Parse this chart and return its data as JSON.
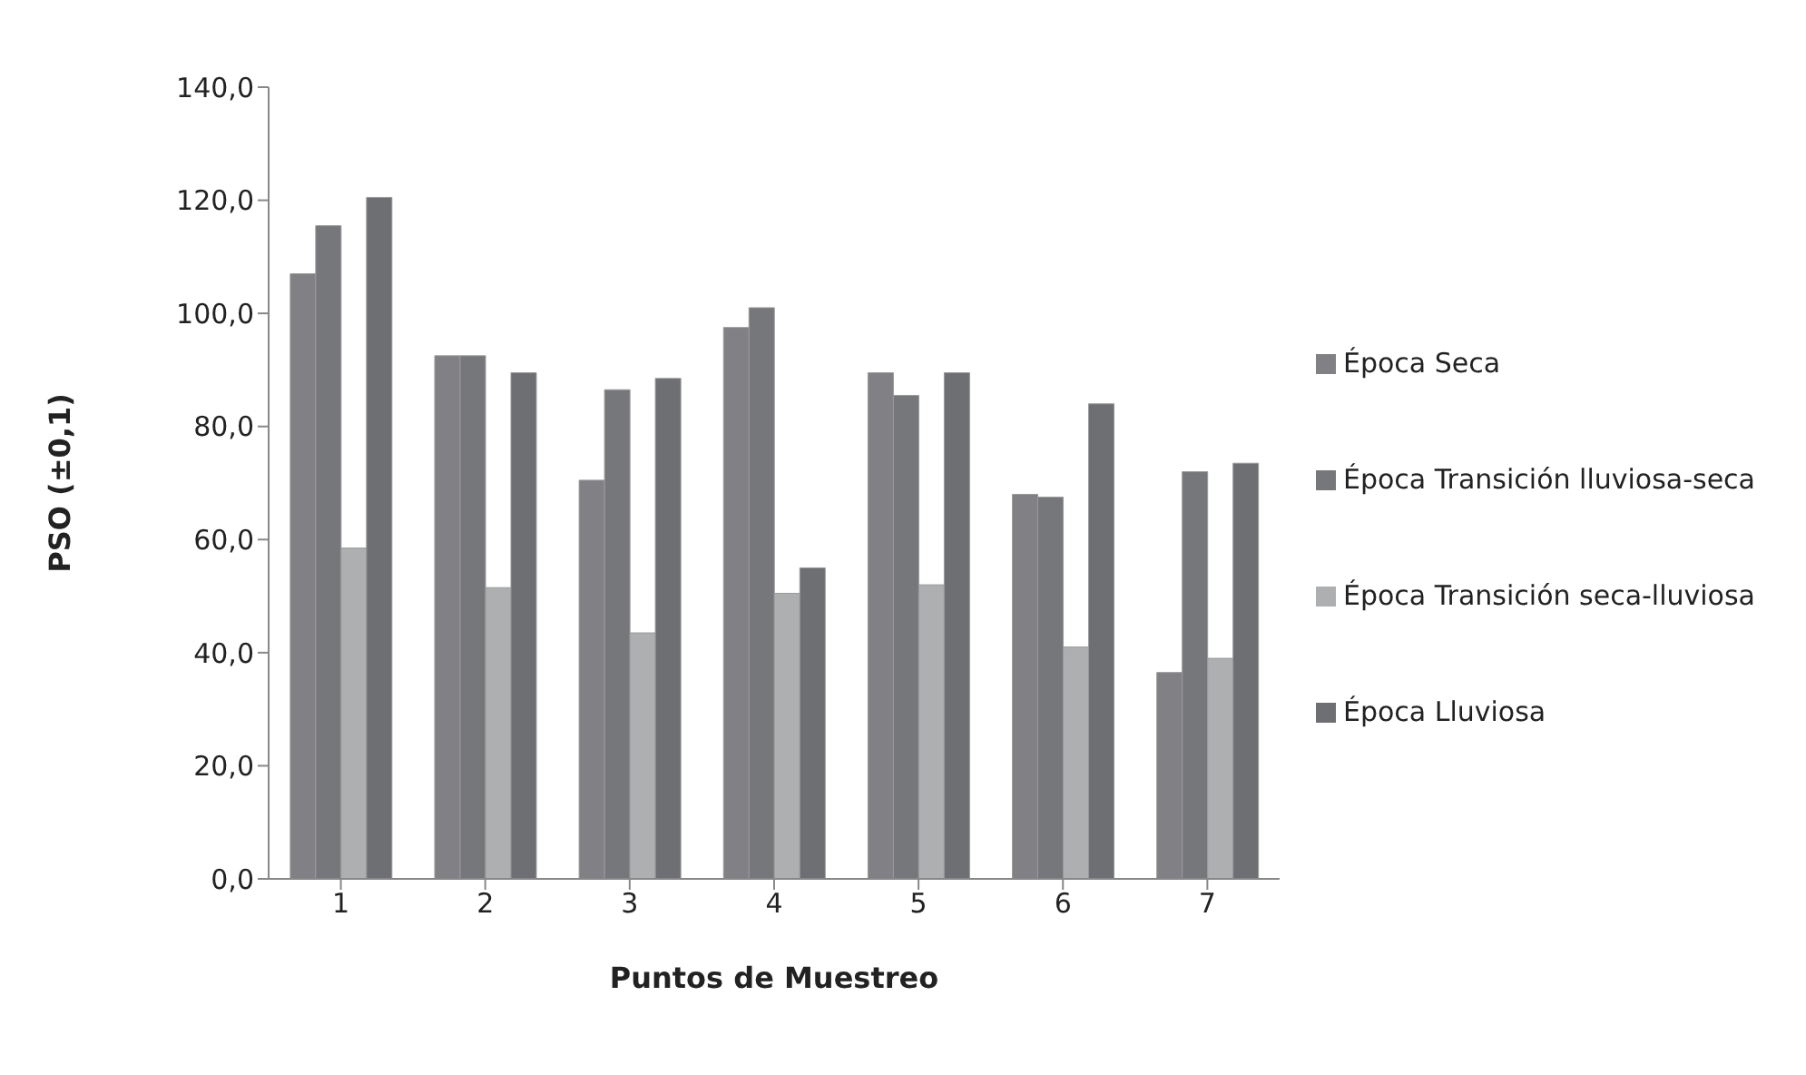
{
  "chart_data": {
    "type": "bar",
    "xlabel": "Puntos de Muestreo",
    "ylabel": "PSO (±0,1)",
    "categories": [
      "1",
      "2",
      "3",
      "4",
      "5",
      "6",
      "7"
    ],
    "series": [
      {
        "name": "Época Seca",
        "color": "#808085",
        "values": [
          107,
          92.5,
          70.5,
          97.5,
          89.5,
          68,
          36.5
        ]
      },
      {
        "name": "Época Transición lluviosa-seca",
        "color": "#76777b",
        "values": [
          115.5,
          92.5,
          86.5,
          101,
          85.5,
          67.5,
          72
        ]
      },
      {
        "name": "Época Transición seca-lluviosa",
        "color": "#aeafb1",
        "values": [
          58.5,
          51.5,
          43.5,
          50.5,
          52,
          41,
          39
        ]
      },
      {
        "name": "Época Lluviosa",
        "color": "#6e6f73",
        "values": [
          120.5,
          89.5,
          88.5,
          55,
          89.5,
          84,
          73.5
        ]
      }
    ],
    "ylim": [
      0,
      140
    ],
    "yticks": [
      {
        "value": 0,
        "label": "0,0"
      },
      {
        "value": 20,
        "label": "20,0"
      },
      {
        "value": 40,
        "label": "40,0"
      },
      {
        "value": 60,
        "label": "60,0"
      },
      {
        "value": 80,
        "label": "80,0"
      },
      {
        "value": 100,
        "label": "100,0"
      },
      {
        "value": 120,
        "label": "120,0"
      },
      {
        "value": 140,
        "label": "140,0"
      }
    ],
    "grid": false,
    "legend": "right"
  }
}
